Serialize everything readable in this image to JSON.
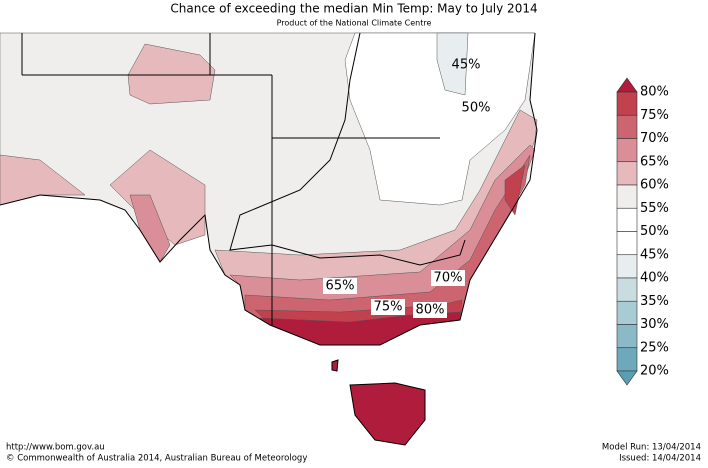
{
  "header": {
    "title": "Chance of exceeding the median Min Temp: May to July 2014",
    "subtitle": "Product of the National Climate Centre"
  },
  "map": {
    "contour_labels": [
      "45%",
      "50%",
      "65%",
      "70%",
      "75%",
      "80%"
    ]
  },
  "legend": {
    "labels": [
      "80%",
      "75%",
      "70%",
      "65%",
      "60%",
      "55%",
      "50%",
      "45%",
      "40%",
      "35%",
      "30%",
      "25%",
      "20%"
    ],
    "colors": [
      "#b01c3b",
      "#c1414f",
      "#cd6571",
      "#da8e97",
      "#e6b9bc",
      "#efeeec",
      "#ffffff",
      "#ffffff",
      "#e8eef0",
      "#c9dde1",
      "#a9cbd3",
      "#8bbac6",
      "#6da9ba",
      "#5a9eb1"
    ]
  },
  "footer": {
    "url": "http://www.bom.gov.au",
    "copyright": "©  Commonwealth of Australia 2014, Australian Bureau of Meteorology",
    "model_run": "Model Run: 13/04/2014",
    "issued": "Issued: 14/04/2014"
  }
}
